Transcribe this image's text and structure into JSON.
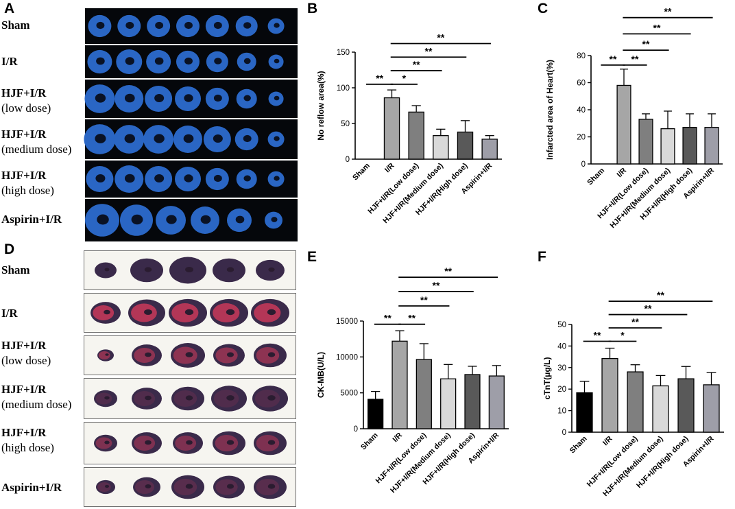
{
  "panels": {
    "A": {
      "letter": "A"
    },
    "B": {
      "letter": "B"
    },
    "C": {
      "letter": "C"
    },
    "D": {
      "letter": "D"
    },
    "E": {
      "letter": "E"
    },
    "F": {
      "letter": "F"
    }
  },
  "image_panels": {
    "A": {
      "rows": [
        {
          "line1": "Sham",
          "line2": ""
        },
        {
          "line1": "I/R",
          "line2": ""
        },
        {
          "line1": "HJF+I/R",
          "line2": "(low dose)"
        },
        {
          "line1": "HJF+I/R",
          "line2": "(medium dose)"
        },
        {
          "line1": "HJF+I/R",
          "line2": "(high dose)"
        },
        {
          "line1": "Aspirin+I/R",
          "line2": ""
        }
      ],
      "ring_color": "#2a66c4"
    },
    "D": {
      "rows": [
        {
          "line1": "Sham",
          "line2": ""
        },
        {
          "line1": "I/R",
          "line2": ""
        },
        {
          "line1": "HJF+I/R",
          "line2": "(low dose)"
        },
        {
          "line1": "HJF+I/R",
          "line2": "(medium dose)"
        },
        {
          "line1": "HJF+I/R",
          "line2": "(high dose)"
        },
        {
          "line1": "Aspirin+I/R",
          "line2": ""
        }
      ],
      "tissue_color": "#3a2a4a",
      "infarct_color": "#d23a5a"
    }
  },
  "chart_data": [
    {
      "panel": "B",
      "type": "bar",
      "ylabel": "No reflow area(%)",
      "ylim": [
        0,
        150
      ],
      "yticks": [
        0,
        50,
        100,
        150
      ],
      "categories": [
        "Sham",
        "I/R",
        "HJF+I/R(Low dose)",
        "HJF+I/R(Medium dose)",
        "HJF+I/R(High dose)",
        "Aspirin+I/R"
      ],
      "values": [
        0,
        86,
        66,
        33,
        38,
        28
      ],
      "errors": [
        0,
        11,
        9,
        9,
        16,
        5
      ],
      "bar_colors": [
        "#000000",
        "#a6a6a6",
        "#7f7f7f",
        "#d9d9d9",
        "#595959",
        "#9e9ea8"
      ],
      "significance": [
        {
          "from": 0,
          "to": 1,
          "label": "**",
          "y": 105
        },
        {
          "from": 1,
          "to": 2,
          "label": "*",
          "y": 105
        },
        {
          "from": 1,
          "to": 3,
          "label": "**",
          "y": 124
        },
        {
          "from": 1,
          "to": 4,
          "label": "**",
          "y": 143
        },
        {
          "from": 1,
          "to": 5,
          "label": "**",
          "y": 162
        }
      ]
    },
    {
      "panel": "C",
      "type": "bar",
      "ylabel": "Infarcted area of Heart(%)",
      "ylim": [
        0,
        80
      ],
      "yticks": [
        0,
        20,
        40,
        60,
        80
      ],
      "categories": [
        "Sham",
        "I/R",
        "HJF+I/R(Low dose)",
        "HJF+I/R(Medium dose)",
        "HJF+I/R(High dose)",
        "Aspirin+I/R"
      ],
      "values": [
        0,
        58,
        33,
        26,
        27,
        27
      ],
      "errors": [
        0,
        12,
        4,
        13,
        10,
        10
      ],
      "bar_colors": [
        "#000000",
        "#a6a6a6",
        "#7f7f7f",
        "#d9d9d9",
        "#595959",
        "#9e9ea8"
      ],
      "significance": [
        {
          "from": 0,
          "to": 1,
          "label": "**",
          "y": 73
        },
        {
          "from": 1,
          "to": 2,
          "label": "**",
          "y": 73
        },
        {
          "from": 1,
          "to": 3,
          "label": "**",
          "y": 84
        },
        {
          "from": 1,
          "to": 4,
          "label": "**",
          "y": 96
        },
        {
          "from": 1,
          "to": 5,
          "label": "**",
          "y": 108
        }
      ]
    },
    {
      "panel": "E",
      "type": "bar",
      "ylabel": "CK-MB(U/L)",
      "ylim": [
        0,
        15000
      ],
      "yticks": [
        0,
        5000,
        10000,
        15000
      ],
      "categories": [
        "Sham",
        "I/R",
        "HJF+I/R(Low dose)",
        "HJF+I/R(Medium dose)",
        "HJF+I/R(High dose)",
        "Aspirin+I/R"
      ],
      "values": [
        4100,
        12200,
        9650,
        6950,
        7550,
        7350
      ],
      "errors": [
        1100,
        1450,
        2200,
        2000,
        1150,
        1450
      ],
      "bar_colors": [
        "#000000",
        "#a6a6a6",
        "#7f7f7f",
        "#d9d9d9",
        "#595959",
        "#9e9ea8"
      ],
      "significance": [
        {
          "from": 0,
          "to": 1,
          "label": "**",
          "y": 14550
        },
        {
          "from": 1,
          "to": 2,
          "label": "**",
          "y": 14550
        },
        {
          "from": 1,
          "to": 3,
          "label": "**",
          "y": 17100
        },
        {
          "from": 1,
          "to": 4,
          "label": "**",
          "y": 19100
        },
        {
          "from": 1,
          "to": 5,
          "label": "**",
          "y": 21100
        }
      ]
    },
    {
      "panel": "F",
      "type": "bar",
      "ylabel": "cTnT(μg/L)",
      "ylim": [
        0,
        50
      ],
      "yticks": [
        0,
        10,
        20,
        30,
        40,
        50
      ],
      "categories": [
        "Sham",
        "I/R",
        "HJF+I/R(Low dose)",
        "HJF+I/R(Medium dose)",
        "HJF+I/R(High dose)",
        "Aspirin+I/R"
      ],
      "values": [
        18.3,
        34.2,
        28,
        21.5,
        24.8,
        22
      ],
      "errors": [
        5.3,
        4.8,
        3.3,
        4.8,
        5.7,
        5.7
      ],
      "bar_colors": [
        "#000000",
        "#a6a6a6",
        "#7f7f7f",
        "#d9d9d9",
        "#595959",
        "#9e9ea8"
      ],
      "significance": [
        {
          "from": 0,
          "to": 1,
          "label": "**",
          "y": 42.2
        },
        {
          "from": 1,
          "to": 2,
          "label": "*",
          "y": 42.2
        },
        {
          "from": 1,
          "to": 3,
          "label": "**",
          "y": 48.4
        },
        {
          "from": 1,
          "to": 4,
          "label": "**",
          "y": 54.6
        },
        {
          "from": 1,
          "to": 5,
          "label": "**",
          "y": 60.8
        }
      ]
    }
  ]
}
